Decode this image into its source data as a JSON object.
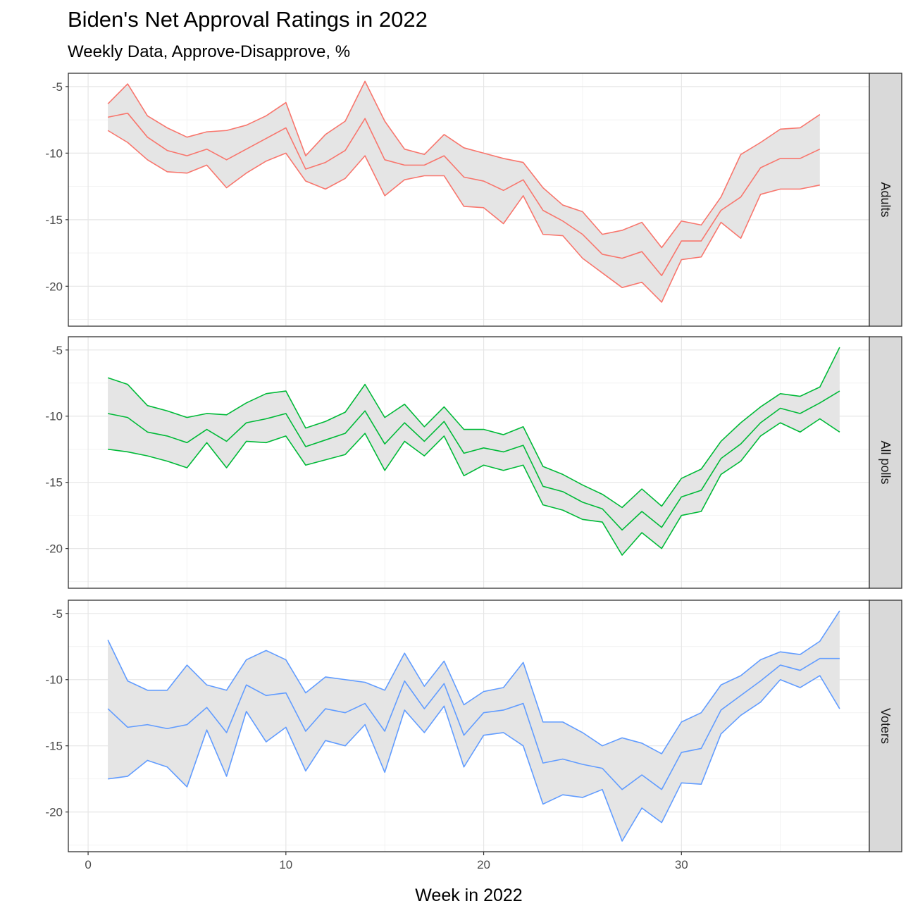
{
  "chart_data": {
    "type": "line",
    "title": "Biden's Net Approval Ratings in 2022",
    "subtitle": "Weekly Data, Approve-Disapprove, %",
    "xlabel": "Week in 2022",
    "ylabel": "",
    "xlim": [
      -1,
      39.5
    ],
    "x_ticks": [
      0,
      10,
      20,
      30
    ],
    "y_ticks": [
      -5,
      -10,
      -15,
      -20
    ],
    "grid": true,
    "facet_strip_position": "right",
    "x": [
      1,
      2,
      3,
      4,
      5,
      6,
      7,
      8,
      9,
      10,
      11,
      12,
      13,
      14,
      15,
      16,
      17,
      18,
      19,
      20,
      21,
      22,
      23,
      24,
      25,
      26,
      27,
      28,
      29,
      30,
      31,
      32,
      33,
      34,
      35,
      36,
      37,
      38
    ],
    "facets": [
      {
        "label": "Adults",
        "color": "#F8766D",
        "ylim": [
          -23,
          -4
        ],
        "mean": [
          -7.3,
          -7.0,
          -8.8,
          -9.8,
          -10.2,
          -9.7,
          -10.5,
          -9.7,
          -8.9,
          -8.1,
          -11.2,
          -10.7,
          -9.8,
          -7.4,
          -10.5,
          -10.9,
          -10.9,
          -10.2,
          -11.8,
          -12.1,
          -12.8,
          -12.0,
          -14.3,
          -15.1,
          -16.1,
          -17.6,
          -17.9,
          -17.4,
          -19.2,
          -16.6,
          -16.6,
          -14.3,
          -13.3,
          -11.1,
          -10.4,
          -10.4,
          -9.7
        ],
        "upper": [
          -6.3,
          -4.8,
          -7.2,
          -8.1,
          -8.8,
          -8.4,
          -8.3,
          -7.9,
          -7.2,
          -6.2,
          -10.2,
          -8.6,
          -7.6,
          -4.6,
          -7.6,
          -9.7,
          -10.1,
          -8.6,
          -9.6,
          -10.0,
          -10.4,
          -10.7,
          -12.6,
          -13.9,
          -14.4,
          -16.1,
          -15.8,
          -15.2,
          -17.1,
          -15.1,
          -15.4,
          -13.3,
          -10.1,
          -9.2,
          -8.2,
          -8.1,
          -7.1
        ],
        "lower": [
          -8.3,
          -9.2,
          -10.5,
          -11.4,
          -11.5,
          -10.9,
          -12.6,
          -11.5,
          -10.6,
          -10.0,
          -12.1,
          -12.7,
          -11.9,
          -10.2,
          -13.2,
          -12.0,
          -11.7,
          -11.7,
          -14.0,
          -14.1,
          -15.3,
          -13.2,
          -16.1,
          -16.2,
          -17.9,
          -19.0,
          -20.1,
          -19.7,
          -21.2,
          -18.0,
          -17.8,
          -15.2,
          -16.4,
          -13.1,
          -12.7,
          -12.7,
          -12.4
        ]
      },
      {
        "label": "All polls",
        "color": "#00BA38",
        "ylim": [
          -23,
          -4
        ],
        "mean": [
          -9.8,
          -10.1,
          -11.2,
          -11.5,
          -12.0,
          -11.0,
          -11.9,
          -10.5,
          -10.2,
          -9.8,
          -12.3,
          -11.8,
          -11.3,
          -9.6,
          -12.1,
          -10.5,
          -11.9,
          -10.4,
          -12.8,
          -12.4,
          -12.7,
          -12.2,
          -15.3,
          -15.7,
          -16.5,
          -17.0,
          -18.6,
          -17.2,
          -18.4,
          -16.1,
          -15.6,
          -13.2,
          -12.1,
          -10.5,
          -9.4,
          -9.8,
          -9.0,
          -8.1
        ],
        "upper": [
          -7.1,
          -7.6,
          -9.2,
          -9.6,
          -10.1,
          -9.8,
          -9.9,
          -9.0,
          -8.3,
          -8.1,
          -10.9,
          -10.4,
          -9.7,
          -7.6,
          -10.1,
          -9.1,
          -10.8,
          -9.3,
          -11.0,
          -11.0,
          -11.4,
          -10.8,
          -13.8,
          -14.4,
          -15.2,
          -15.9,
          -16.9,
          -15.5,
          -16.8,
          -14.7,
          -14.0,
          -11.9,
          -10.5,
          -9.3,
          -8.3,
          -8.5,
          -7.8,
          -4.8
        ],
        "lower": [
          -12.5,
          -12.7,
          -13.0,
          -13.4,
          -13.9,
          -12.0,
          -13.9,
          -11.9,
          -12.0,
          -11.5,
          -13.7,
          -13.3,
          -12.9,
          -11.3,
          -14.1,
          -11.9,
          -13.0,
          -11.5,
          -14.5,
          -13.7,
          -14.1,
          -13.7,
          -16.7,
          -17.1,
          -17.8,
          -18.0,
          -20.5,
          -18.8,
          -20.0,
          -17.5,
          -17.2,
          -14.4,
          -13.4,
          -11.5,
          -10.5,
          -11.2,
          -10.2,
          -11.2
        ]
      },
      {
        "label": "Voters",
        "color": "#619CFF",
        "ylim": [
          -23,
          -4
        ],
        "mean": [
          -12.2,
          -13.6,
          -13.4,
          -13.7,
          -13.4,
          -12.1,
          -14.0,
          -10.4,
          -11.2,
          -11.0,
          -13.9,
          -12.2,
          -12.5,
          -11.8,
          -13.9,
          -10.1,
          -12.2,
          -10.3,
          -14.2,
          -12.5,
          -12.3,
          -11.8,
          -16.3,
          -16.0,
          -16.4,
          -16.7,
          -18.3,
          -17.2,
          -18.3,
          -15.5,
          -15.2,
          -12.3,
          -11.2,
          -10.1,
          -8.9,
          -9.3,
          -8.4,
          -8.4
        ],
        "upper": [
          -7.0,
          -10.1,
          -10.8,
          -10.8,
          -8.9,
          -10.4,
          -10.8,
          -8.5,
          -7.8,
          -8.5,
          -11.0,
          -9.8,
          -10.0,
          -10.2,
          -10.8,
          -8.0,
          -10.5,
          -8.6,
          -11.9,
          -10.9,
          -10.6,
          -8.7,
          -13.2,
          -13.2,
          -14.0,
          -15.0,
          -14.4,
          -14.8,
          -15.6,
          -13.2,
          -12.5,
          -10.4,
          -9.7,
          -8.5,
          -7.9,
          -8.1,
          -7.1,
          -4.8
        ],
        "lower": [
          -17.5,
          -17.3,
          -16.1,
          -16.6,
          -18.1,
          -13.8,
          -17.3,
          -12.4,
          -14.7,
          -13.6,
          -16.9,
          -14.6,
          -15.0,
          -13.4,
          -17.0,
          -12.3,
          -14.0,
          -12.0,
          -16.6,
          -14.2,
          -14.0,
          -15.0,
          -19.4,
          -18.7,
          -18.9,
          -18.3,
          -22.2,
          -19.7,
          -20.8,
          -17.8,
          -17.9,
          -14.1,
          -12.7,
          -11.7,
          -10.0,
          -10.6,
          -9.7,
          -12.2
        ]
      }
    ]
  }
}
